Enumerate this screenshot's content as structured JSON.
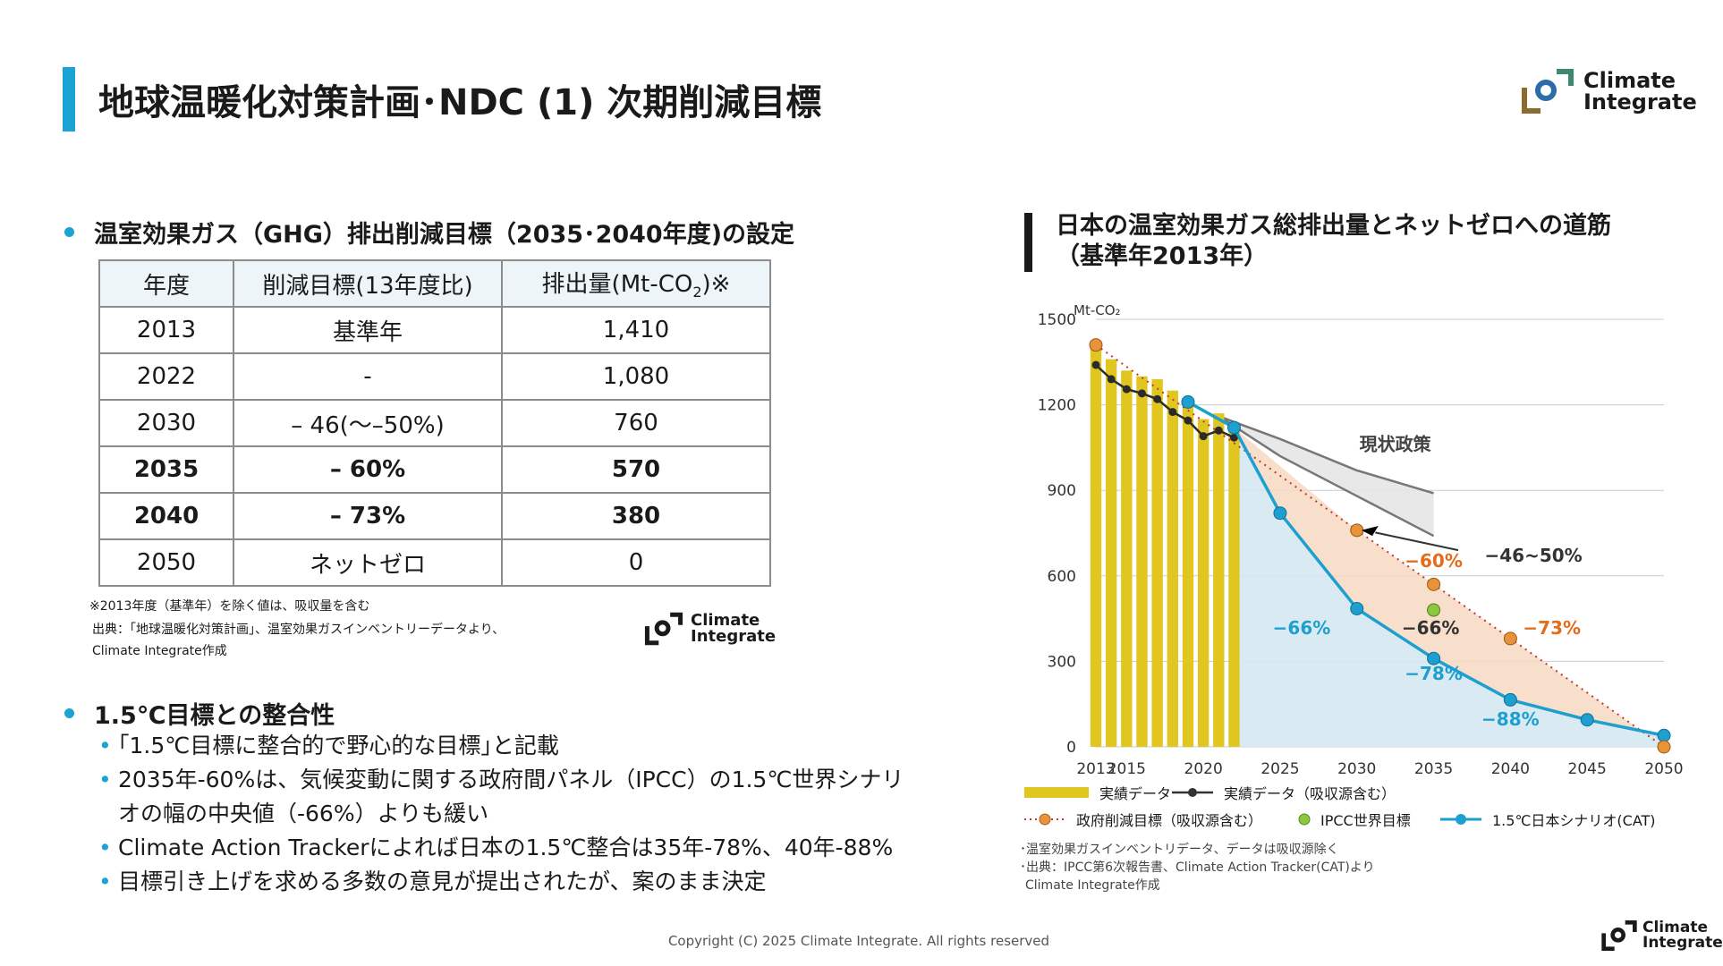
{
  "header": {
    "title": "地球温暖化対策計画･NDC (1) 次期削減目標"
  },
  "logo": {
    "line1": "Climate",
    "line2": "Integrate"
  },
  "section1": {
    "heading": "温室効果ガス（GHG）排出削減目標（2035･2040年度)の設定",
    "table": {
      "headers": [
        "年度",
        "削減目標(13年度比)",
        "排出量(Mt-CO",
        "2",
        ")※"
      ],
      "rows": [
        [
          "2013",
          "基準年",
          "1,410"
        ],
        [
          "2022",
          "-",
          "1,080"
        ],
        [
          "2030",
          "– 46(～–50%)",
          "760"
        ],
        [
          "2035",
          "– 60%",
          "570"
        ],
        [
          "2040",
          "– 73%",
          "380"
        ],
        [
          "2050",
          "ネットゼロ",
          "0"
        ]
      ]
    },
    "notes": [
      "※2013年度（基準年）を除く値は、吸収量を含む",
      "出典：｢地球温暖化対策計画｣、温室効果ガスインベントリーデータより、",
      "Climate Integrate作成"
    ]
  },
  "section2": {
    "heading": "1.5℃目標との整合性",
    "items": [
      "｢1.5℃目標に整合的で野心的な目標｣と記載",
      "2035年-60%は、気候変動に関する政府間パネル（IPCC）の1.5℃世界シナリ",
      "オの幅の中央値（-66%）よりも緩い",
      "Climate Action Trackerによれば日本の1.5℃整合は35年-78%、40年-88%",
      "目標引き上げを求める多数の意見が提出されたが、案のまま決定"
    ]
  },
  "chart_title": {
    "line1": "日本の温室効果ガス総排出量とネットゼロへの道筋",
    "line2": "（基準年2013年）"
  },
  "legend": {
    "actual_bar": "実績データ",
    "actual_line": "実績データ（吸収源含む）",
    "gov_target": "政府削減目標（吸収源含む）",
    "ipcc": "IPCC世界目標",
    "cat": "1.5℃日本シナリオ(CAT)"
  },
  "source_notes": [
    "･温室効果ガスインベントリデータ、データは吸収源除く",
    "･出典：IPCC第6次報告書、Climate Action Tracker(CAT)より",
    "Climate Integrate作成"
  ],
  "copyright": "Copyright (C) 2025 Climate Integrate. All rights reserved",
  "colors": {
    "accent": "#1aa3d4",
    "bar": "#e0c61f",
    "gov": "#e8923a",
    "ipcc": "#8dc63f",
    "cat": "#1d9fd0",
    "label_orange": "#e46c1a"
  },
  "chart_data": {
    "type": "line",
    "ylabel": "Mt-CO₂",
    "ylim": [
      0,
      1500
    ],
    "xlim": [
      2013,
      2050
    ],
    "yticks": [
      0,
      300,
      600,
      900,
      1200,
      1500
    ],
    "xticks": [
      2013,
      2015,
      2020,
      2025,
      2030,
      2035,
      2040,
      2045,
      2050
    ],
    "bars": {
      "name": "実績データ",
      "x": [
        2013,
        2014,
        2015,
        2016,
        2017,
        2018,
        2019,
        2020,
        2021,
        2022
      ],
      "values": [
        1410,
        1360,
        1320,
        1300,
        1290,
        1250,
        1210,
        1150,
        1170,
        1135
      ]
    },
    "actual_line": {
      "name": "実績データ（吸収源含む）",
      "x": [
        2013,
        2014,
        2015,
        2016,
        2017,
        2018,
        2019,
        2020,
        2021,
        2022
      ],
      "values": [
        1340,
        1290,
        1255,
        1240,
        1220,
        1175,
        1145,
        1090,
        1110,
        1085
      ]
    },
    "gov_target": {
      "name": "政府削減目標（吸収源含む）",
      "x": [
        2013,
        2030,
        2035,
        2040,
        2050
      ],
      "values": [
        1410,
        760,
        570,
        380,
        0
      ]
    },
    "ipcc": {
      "name": "IPCC世界目標",
      "x": [
        2035
      ],
      "values": [
        480
      ]
    },
    "cat": {
      "name": "1.5℃日本シナリオ(CAT)",
      "x": [
        2019,
        2022,
        2025,
        2030,
        2035,
        2040,
        2045,
        2050
      ],
      "values": [
        1210,
        1120,
        820,
        485,
        310,
        165,
        95,
        40
      ]
    },
    "current_policy_upper": {
      "x": [
        2021,
        2025,
        2030,
        2035
      ],
      "values": [
        1160,
        1080,
        970,
        890
      ]
    },
    "current_policy_lower": {
      "x": [
        2021,
        2025,
        2030,
        2035
      ],
      "values": [
        1160,
        1020,
        880,
        740
      ]
    },
    "annotations": {
      "current_policy": "現状政策",
      "range_label": "−46~50%",
      "gov2035": "−60%",
      "gov2040": "−73%",
      "cat2030": "−66%",
      "ipcc2035": "−66%",
      "cat2035": "−78%",
      "cat2040": "−88%"
    }
  }
}
